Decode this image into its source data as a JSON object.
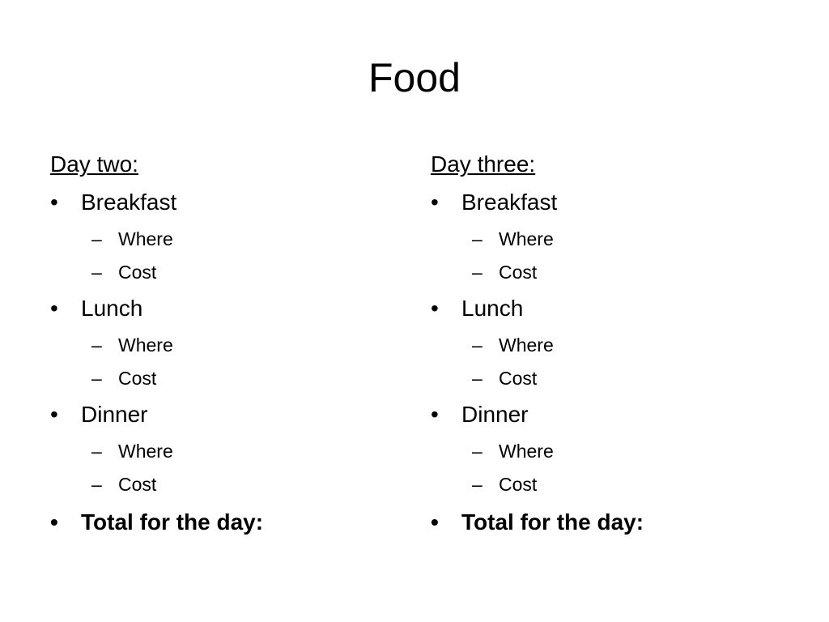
{
  "title": "Food",
  "columns": [
    {
      "heading": "Day two:",
      "items": [
        {
          "label": "Breakfast",
          "sub": [
            "Where",
            "Cost"
          ]
        },
        {
          "label": "Lunch",
          "sub": [
            "Where",
            "Cost"
          ]
        },
        {
          "label": "Dinner",
          "sub": [
            "Where",
            "Cost"
          ]
        }
      ],
      "total": "Total for the day:"
    },
    {
      "heading": "Day three:",
      "items": [
        {
          "label": "Breakfast",
          "sub": [
            "Where",
            "Cost"
          ]
        },
        {
          "label": "Lunch",
          "sub": [
            "Where",
            "Cost"
          ]
        },
        {
          "label": "Dinner",
          "sub": [
            "Where",
            "Cost"
          ]
        }
      ],
      "total": "Total for the day:"
    }
  ],
  "bullet": "•",
  "dash": "–"
}
